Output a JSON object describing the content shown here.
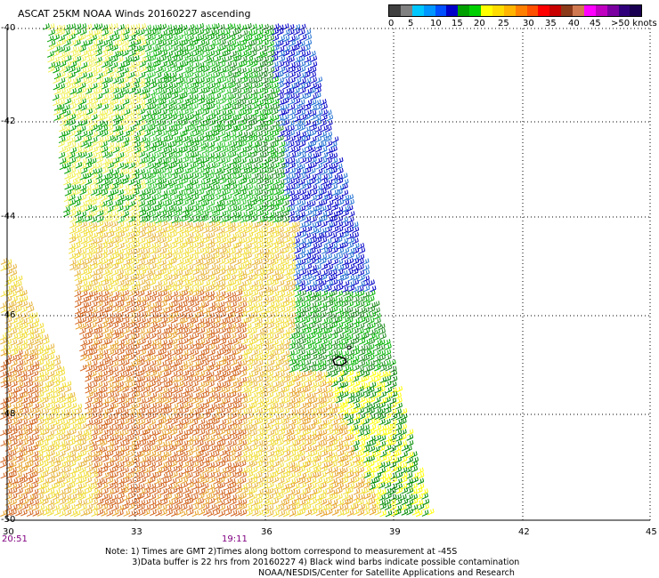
{
  "title": "ASCAT 25KM NOAA Winds 20160227 ascending",
  "legend": {
    "colors": [
      "#404040",
      "#808080",
      "#00c8ff",
      "#0096ff",
      "#0050ff",
      "#0000c8",
      "#00a000",
      "#00d000",
      "#ffff00",
      "#ffdc00",
      "#ffb400",
      "#ff8000",
      "#ff5000",
      "#ff0000",
      "#c80000",
      "#8b3a1a",
      "#d07850",
      "#ff00ff",
      "#c000c0",
      "#7a00a0",
      "#30007a",
      "#1a0050"
    ],
    "labels": [
      "0",
      "5",
      "10",
      "15",
      "20",
      "25",
      "30",
      "35",
      "40",
      "45",
      ">50 knots"
    ]
  },
  "map": {
    "lat_labels": [
      "-40",
      "-42",
      "-44",
      "-46",
      "-48",
      "-50"
    ],
    "lon_labels": [
      "30",
      "33",
      "36",
      "39",
      "42",
      "45"
    ],
    "time_labels": [
      "20:51",
      "19:11"
    ]
  },
  "notes": "Note: 1) Times are GMT 2)Times along bottom correspond to measurement at -45S\n          3)Data buffer is 22 hrs from 20160227 4) Black wind barbs indicate possible contamination",
  "credit": "NOAA/NESDIS/Center for Satellite Applications and Research"
}
